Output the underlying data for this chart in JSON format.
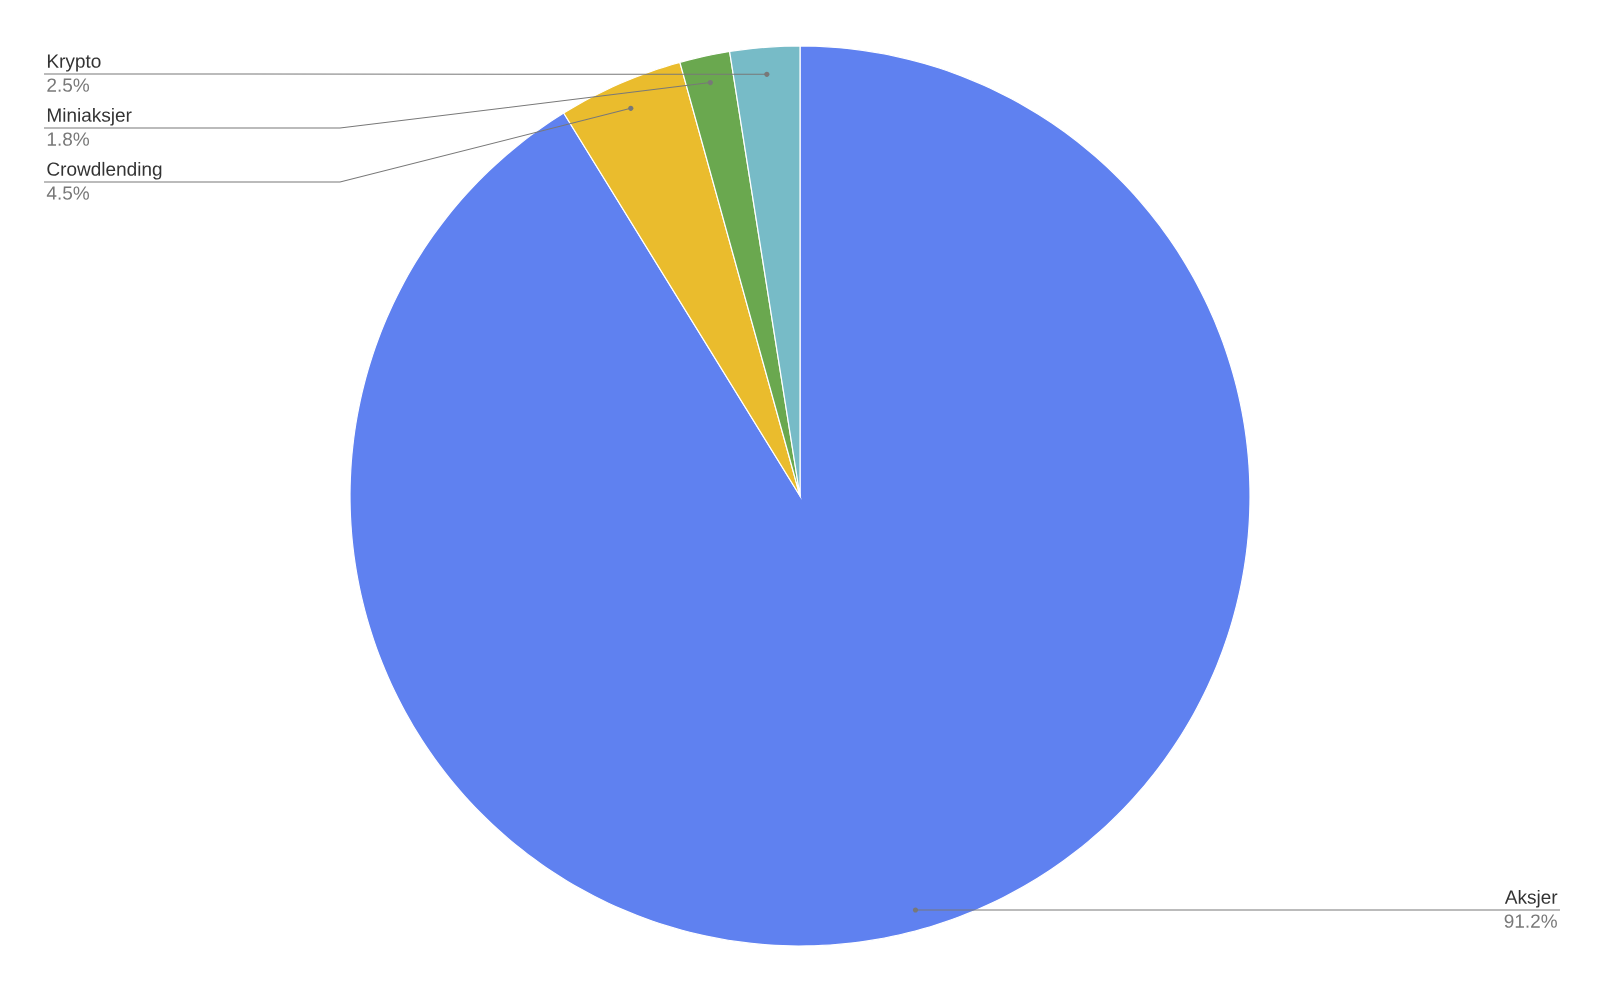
{
  "chart_data": {
    "type": "pie",
    "categories": [
      "Aksjer",
      "Crowdlending",
      "Miniaksjer",
      "Krypto"
    ],
    "values": [
      91.2,
      4.5,
      1.8,
      2.5
    ],
    "colors": [
      "#5f81f0",
      "#eabc2d",
      "#6aa84f",
      "#77bbc7"
    ],
    "value_labels": [
      "91.2%",
      "4.5%",
      "1.8%",
      "2.5%"
    ]
  }
}
